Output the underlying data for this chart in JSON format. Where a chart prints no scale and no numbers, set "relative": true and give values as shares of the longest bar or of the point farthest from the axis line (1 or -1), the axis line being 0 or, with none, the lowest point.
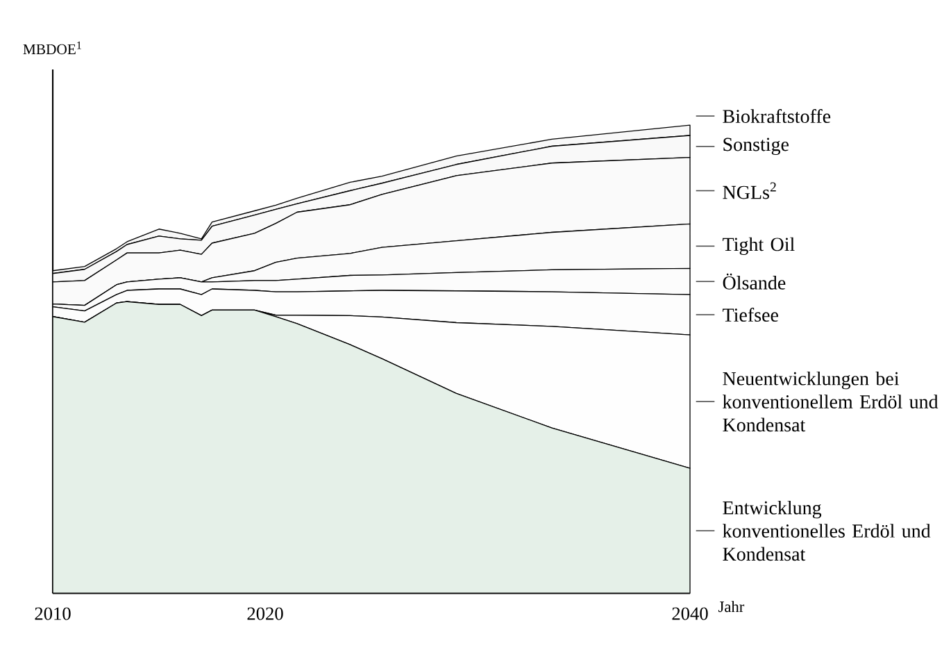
{
  "chart_data": {
    "type": "area",
    "stacked": true,
    "relative": true,
    "ylabel": "MBDOE$^{1}$",
    "xlabel": "Jahr",
    "x": [
      2010,
      2011.5,
      2013,
      2013.5,
      2015,
      2016,
      2017,
      2017.5,
      2019.5,
      2020.5,
      2021.5,
      2024,
      2025.5,
      2029,
      2033.5,
      2040
    ],
    "xlim": [
      2010,
      2040
    ],
    "xticks": [
      2010,
      2020,
      2040
    ],
    "legend": "right",
    "series": [
      {
        "name": "Entwicklung konventionelles Erdöl und Kondensat",
        "color": "#e5f0e8",
        "values": [
          0.591,
          0.579,
          0.62,
          0.623,
          0.617,
          0.617,
          0.593,
          0.605,
          0.605,
          0.591,
          0.576,
          0.531,
          0.501,
          0.427,
          0.353,
          0.267
        ]
      },
      {
        "name": "Neuentwicklungen bei konventionellem Erdöl und Kondensat",
        "color": "#fefefe",
        "values": [
          0,
          0,
          0,
          0,
          0,
          0,
          0,
          0,
          0,
          0.003,
          0.018,
          0.062,
          0.089,
          0.151,
          0.217,
          0.285
        ]
      },
      {
        "name": "Tiefsee",
        "color": "#fdfdfd",
        "values": [
          0.021,
          0.024,
          0.018,
          0.024,
          0.033,
          0.033,
          0.045,
          0.045,
          0.042,
          0.05,
          0.05,
          0.053,
          0.057,
          0.068,
          0.074,
          0.086
        ]
      },
      {
        "name": "Ölsande",
        "color": "#fcfcfc",
        "values": [
          0.006,
          0.012,
          0.021,
          0.018,
          0.021,
          0.024,
          0.027,
          0.015,
          0.021,
          0.024,
          0.027,
          0.033,
          0.033,
          0.039,
          0.047,
          0.056
        ]
      },
      {
        "name": "Tight Oil",
        "color": "#fbfbfb",
        "values": [
          0,
          0,
          0,
          0,
          0,
          0,
          0,
          0.009,
          0.021,
          0.039,
          0.045,
          0.047,
          0.059,
          0.068,
          0.08,
          0.095
        ]
      },
      {
        "name": "NGLs$^{2}$",
        "color": "#fafafa",
        "values": [
          0.047,
          0.053,
          0.053,
          0.062,
          0.056,
          0.059,
          0.059,
          0.074,
          0.08,
          0.083,
          0.098,
          0.104,
          0.113,
          0.139,
          0.148,
          0.142
        ]
      },
      {
        "name": "Sonstige",
        "color": "#f9f9f9",
        "values": [
          0.018,
          0.024,
          0.018,
          0.018,
          0.036,
          0.024,
          0.03,
          0.036,
          0.039,
          0.03,
          0.018,
          0.03,
          0.024,
          0.024,
          0.036,
          0.047
        ]
      },
      {
        "name": "Biokraftstoffe",
        "color": "#f8f8f8",
        "values": [
          0.006,
          0.006,
          0.006,
          0.006,
          0.015,
          0.012,
          0.003,
          0.009,
          0.009,
          0.009,
          0.012,
          0.018,
          0.015,
          0.018,
          0.015,
          0.022
        ]
      }
    ]
  }
}
